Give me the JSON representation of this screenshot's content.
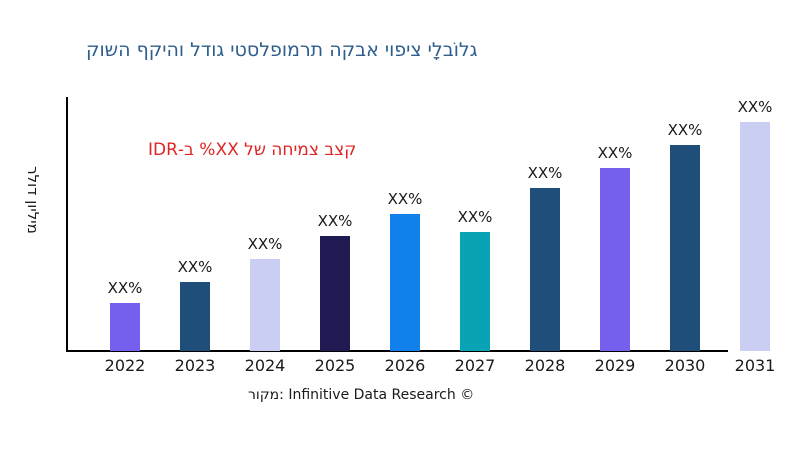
{
  "title": {
    "text": "גלוֹבלָי ציפוי אבקה תרמופלסטי גודל והיקף השוק",
    "color": "#2d5e8c"
  },
  "annotation": {
    "text": "קצב צמיחה של XX% ב-IDR",
    "color": "#e02424"
  },
  "y_axis": {
    "label": "מיליון דולר"
  },
  "x_axis": {
    "ticks": [
      "2022",
      "2023",
      "2024",
      "2025",
      "2026",
      "2027",
      "2028",
      "2029",
      "2030",
      "2031"
    ]
  },
  "caption": {
    "text": "מקור: Infinitive Data Research ©"
  },
  "chart_data": {
    "type": "bar",
    "title": "גלוֹבלָי ציפוי אבקה תרמופלסטי גודל והיקף השוק",
    "categories": [
      "2022",
      "2023",
      "2024",
      "2025",
      "2026",
      "2027",
      "2028",
      "2029",
      "2030",
      "2031"
    ],
    "values": [
      21,
      30,
      40,
      50,
      60,
      52,
      71,
      80,
      90,
      100
    ],
    "values_note": "relative bar heights as % of tallest bar; actual figures masked as XX% in the chart",
    "bar_labels": [
      "XX%",
      "XX%",
      "XX%",
      "XX%",
      "XX%",
      "XX%",
      "XX%",
      "XX%",
      "XX%",
      "XX%"
    ],
    "bar_colors": [
      "#7560ee",
      "#1f4e7a",
      "#c9cef2",
      "#201a52",
      "#1180ea",
      "#08a4b6",
      "#1f4e7a",
      "#7560ee",
      "#1f4e7a",
      "#c9cef2"
    ],
    "xlabel": "",
    "ylabel": "מיליון דולר",
    "annotation": "קצב צמיחה של XX% ב-IDR",
    "annotation_color": "#e02424",
    "title_color": "#2d5e8c",
    "axis_color": "#000000",
    "grid": false,
    "legend": false
  }
}
